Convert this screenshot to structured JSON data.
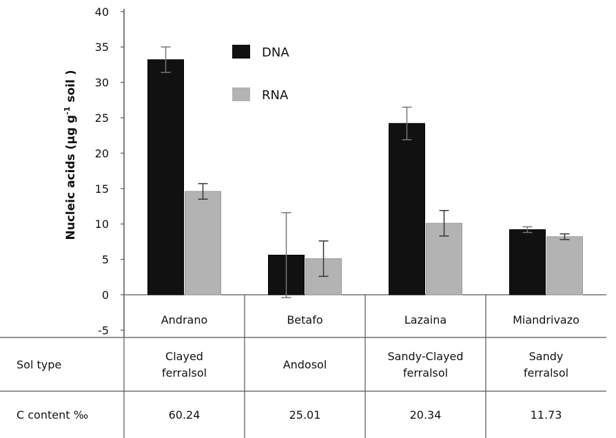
{
  "chart_data": {
    "type": "bar",
    "ylabel_main": "Nucleic acids (µg g",
    "ylabel_sup": "-1",
    "ylabel_end": " soil )",
    "ylim": [
      -5,
      40
    ],
    "yticks": [
      -5,
      0,
      5,
      10,
      15,
      20,
      25,
      30,
      35,
      40
    ],
    "categories": [
      "Andrano",
      "Betafo",
      "Lazaina",
      "Miandrivazo"
    ],
    "legend_position": "top-center",
    "series": [
      {
        "name": "DNA",
        "color": "#111111",
        "values": [
          33.2,
          5.6,
          24.2,
          9.2
        ],
        "errors": [
          1.8,
          6.0,
          2.3,
          0.4
        ]
      },
      {
        "name": "RNA",
        "color": "#b3b3b3",
        "values": [
          14.6,
          5.1,
          10.1,
          8.2
        ],
        "errors": [
          1.1,
          2.5,
          1.8,
          0.4
        ]
      }
    ]
  },
  "table": {
    "rows": [
      {
        "label": "Sol type",
        "cells": [
          [
            "Clayed",
            "ferralsol"
          ],
          [
            "Andosol"
          ],
          [
            "Sandy-Clayed",
            "ferralsol"
          ],
          [
            "Sandy",
            "ferralsol"
          ]
        ]
      },
      {
        "label": "C content ‰",
        "cells": [
          [
            "60.24"
          ],
          [
            "25.01"
          ],
          [
            "20.34"
          ],
          [
            "11.73"
          ]
        ]
      }
    ]
  }
}
